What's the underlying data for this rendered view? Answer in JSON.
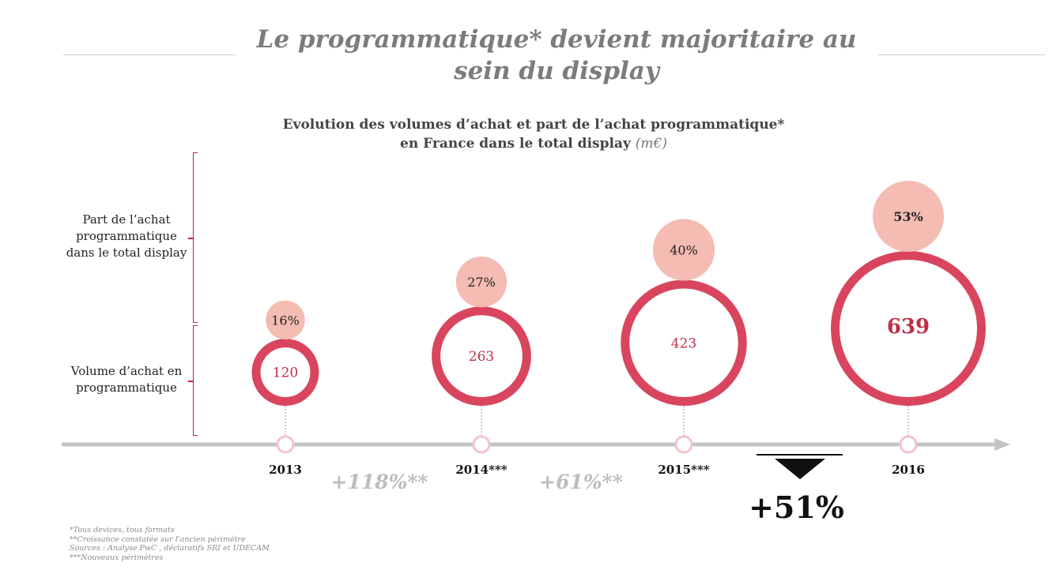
{
  "header": {
    "title_line1": "Le programmatique* devient majoritaire au",
    "title_line2": "sein du display"
  },
  "subtitle": {
    "line1": "Evolution des volumes d’achat et part de l’achat programmatique*",
    "line2": "en France dans le total display",
    "unit": "(m€)"
  },
  "row_labels": {
    "share": [
      "Part de l’achat",
      "programmatique",
      "dans le total display"
    ],
    "volume": [
      "Volume d’achat en",
      "programmatique"
    ]
  },
  "chart_data": {
    "type": "bubble",
    "title": "Evolution des volumes d’achat et part de l’achat programmatique* en France dans le total display (m€)",
    "categories": [
      "2013",
      "2014***",
      "2015***",
      "2016"
    ],
    "series": [
      {
        "name": "Part de l’achat programmatique dans le total display",
        "values": [
          16,
          27,
          40,
          53
        ],
        "labels": [
          "16%",
          "27%",
          "40%",
          "53%"
        ]
      },
      {
        "name": "Volume d’achat en programmatique",
        "values": [
          120,
          263,
          423,
          639
        ],
        "labels": [
          "120",
          "263",
          "423",
          "639"
        ]
      }
    ],
    "growth": [
      {
        "between": [
          "2013",
          "2014***"
        ],
        "label": "+118%**"
      },
      {
        "between": [
          "2014***",
          "2015***"
        ],
        "label": "+61%**"
      },
      {
        "between": [
          "2015***",
          "2016"
        ],
        "label": "+51%"
      }
    ],
    "colors": {
      "volume_ring": "#d9455e",
      "volume_text": "#c0304a",
      "share_fill": "#f4bcb2",
      "axis": "#c4c4c4",
      "growth_text": "#bdbdbd",
      "accent": "#b9283d"
    }
  },
  "notes": [
    "*Tous devices, tous formats",
    "**Croissance constatée sur l’ancien périmètre",
    "Sources : Analyse PwC , déclaratifs SRI et UDECAM",
    "***Nouveaux périmètres"
  ]
}
